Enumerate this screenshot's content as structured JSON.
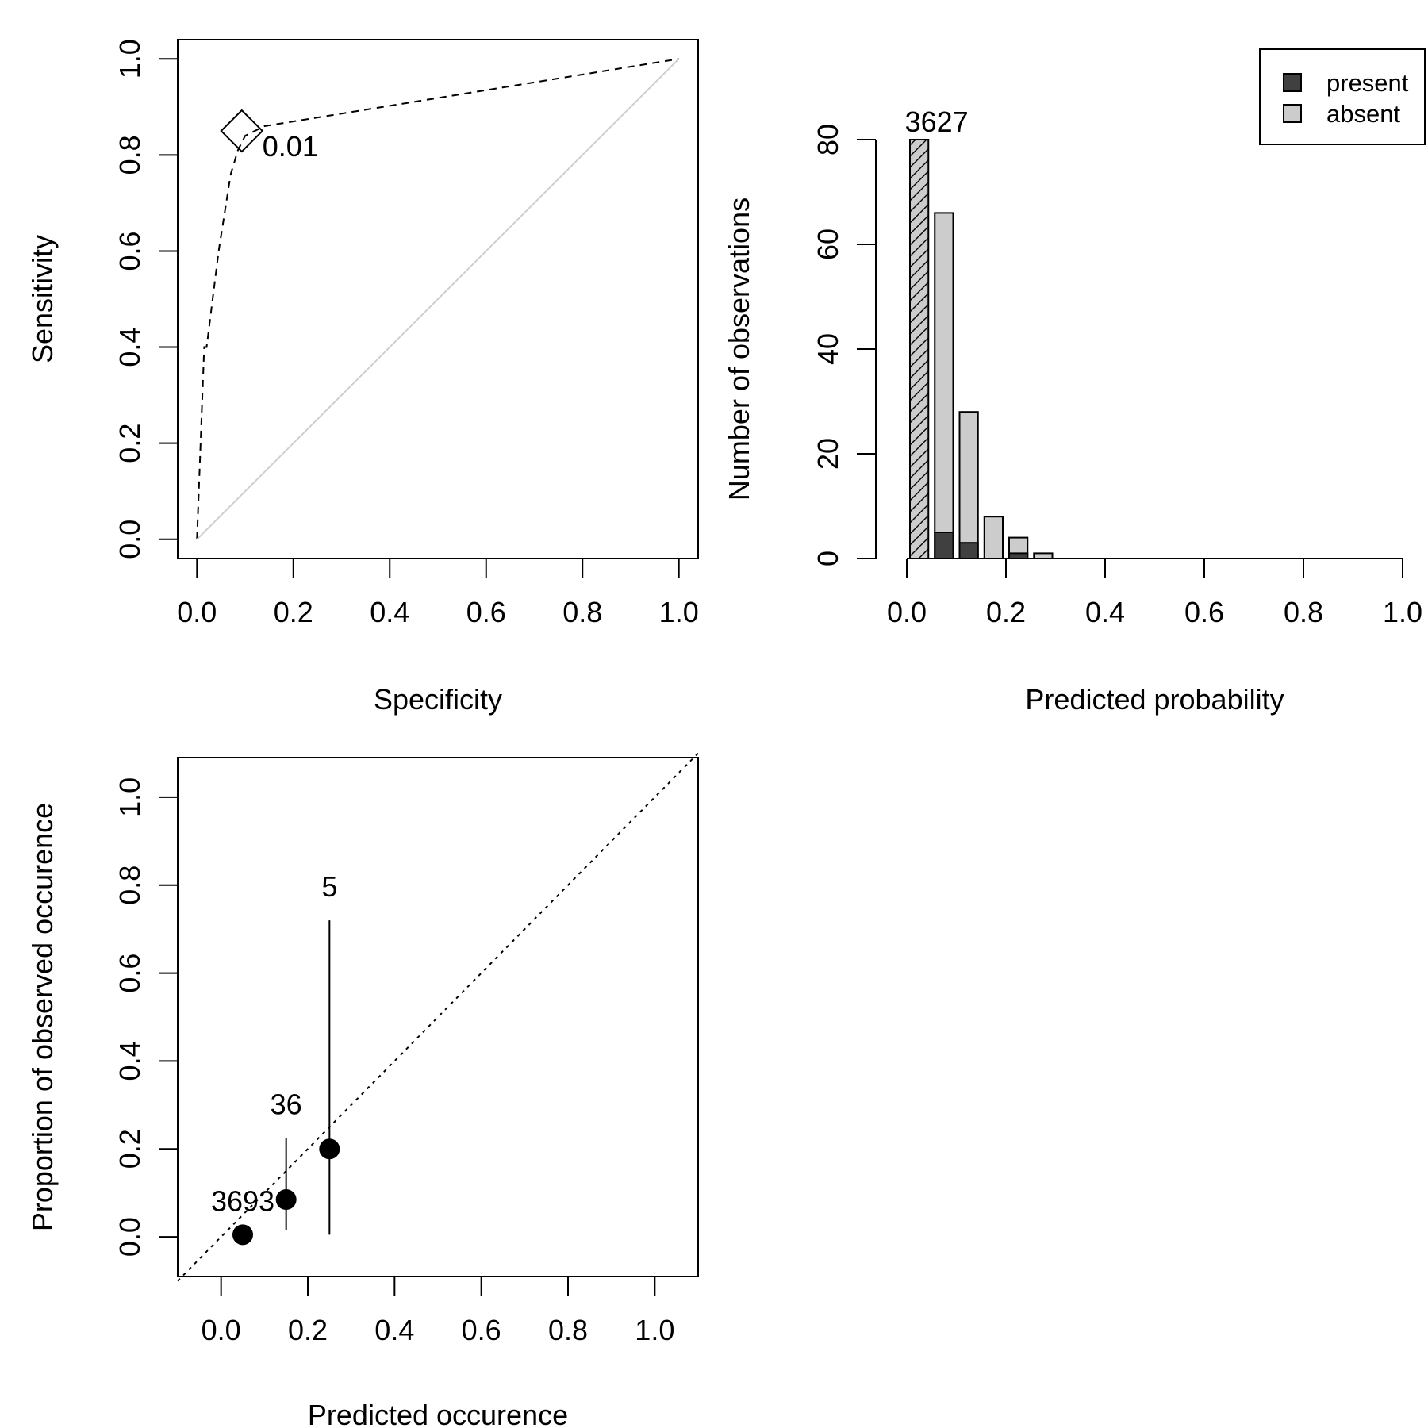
{
  "chart_data": [
    {
      "type": "line",
      "title": "",
      "xlabel": "Specificity",
      "ylabel": "Sensitivity",
      "xlim": [
        -0.04,
        1.04
      ],
      "ylim": [
        -0.04,
        1.04
      ],
      "xticks": [
        "0.0",
        "0.2",
        "0.4",
        "0.6",
        "0.8",
        "1.0"
      ],
      "yticks": [
        "0.0",
        "0.2",
        "0.4",
        "0.6",
        "0.8",
        "1.0"
      ],
      "grid": false,
      "series": [
        {
          "style": "dashed",
          "color": "#000000",
          "x": [
            0.0,
            0.015,
            0.02,
            0.045,
            0.07,
            0.085,
            0.1,
            0.14,
            1.0
          ],
          "y": [
            0.0,
            0.4,
            0.4,
            0.6,
            0.76,
            0.81,
            0.84,
            0.86,
            1.0
          ]
        },
        {
          "style": "solid",
          "color": "#cfcfcf",
          "x": [
            0.0,
            1.0
          ],
          "y": [
            0.0,
            1.0
          ]
        }
      ],
      "threshold_marker": {
        "shape": "diamond",
        "x": 0.093,
        "y": 0.85,
        "label": "0.01"
      }
    },
    {
      "type": "bar",
      "title": "",
      "xlabel": "Predicted probability",
      "ylabel": "Number of observations",
      "xlim": [
        0,
        1
      ],
      "ylim": [
        0,
        80
      ],
      "xticks": [
        "0.0",
        "0.2",
        "0.4",
        "0.6",
        "0.8",
        "1.0"
      ],
      "yticks": [
        "0",
        "20",
        "40",
        "60",
        "80"
      ],
      "grid": false,
      "legend": {
        "position": "top-right",
        "entries": [
          {
            "label": "present",
            "color": "#404040"
          },
          {
            "label": "absent",
            "color": "#cccccc"
          }
        ]
      },
      "bins": [
        {
          "x0": 0.0,
          "x1": 0.05,
          "present": 0,
          "absent": 80,
          "truncated": true,
          "count_label": "3627"
        },
        {
          "x0": 0.05,
          "x1": 0.1,
          "present": 5,
          "absent": 61
        },
        {
          "x0": 0.1,
          "x1": 0.15,
          "present": 3,
          "absent": 25
        },
        {
          "x0": 0.15,
          "x1": 0.2,
          "present": 0,
          "absent": 8
        },
        {
          "x0": 0.2,
          "x1": 0.25,
          "present": 1,
          "absent": 3
        },
        {
          "x0": 0.25,
          "x1": 0.3,
          "present": 0,
          "absent": 1
        }
      ]
    },
    {
      "type": "scatter",
      "title": "",
      "xlabel": "Predicted occurence",
      "ylabel": "Proportion of observed occurence",
      "xlim": [
        -0.1,
        1.1
      ],
      "ylim": [
        -0.09,
        1.09
      ],
      "xticks": [
        "0.0",
        "0.2",
        "0.4",
        "0.6",
        "0.8",
        "1.0"
      ],
      "yticks": [
        "0.0",
        "0.2",
        "0.4",
        "0.6",
        "0.8",
        "1.0"
      ],
      "grid": false,
      "reference_line": {
        "style": "dotted",
        "x": [
          -0.1,
          1.1
        ],
        "y": [
          -0.1,
          1.1
        ]
      },
      "points": [
        {
          "x": 0.05,
          "y": 0.005,
          "lo": 0.005,
          "hi": 0.005,
          "label": "3693"
        },
        {
          "x": 0.15,
          "y": 0.085,
          "lo": 0.015,
          "hi": 0.225,
          "label": "36"
        },
        {
          "x": 0.25,
          "y": 0.2,
          "lo": 0.005,
          "hi": 0.72,
          "label": "5"
        }
      ]
    }
  ]
}
